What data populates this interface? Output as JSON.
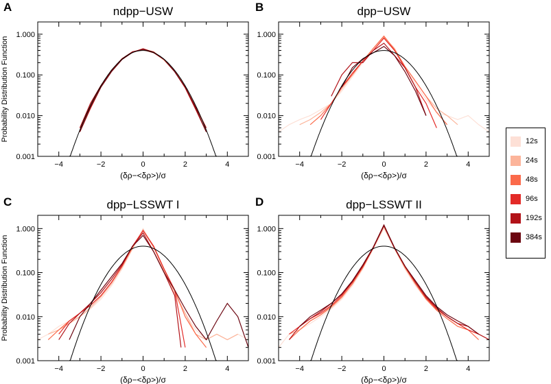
{
  "figure": {
    "y_axis_label": "Probability Distribution Function",
    "x_axis_label": "(δρ−<δρ>)/σ"
  },
  "legend": {
    "items": [
      {
        "label": "12s",
        "color": "#fde0d6"
      },
      {
        "label": "24s",
        "color": "#fcb49a"
      },
      {
        "label": "48s",
        "color": "#fb6a4a"
      },
      {
        "label": "96s",
        "color": "#e32a27"
      },
      {
        "label": "192s",
        "color": "#b21218"
      },
      {
        "label": "384s",
        "color": "#6b0510"
      }
    ]
  },
  "chart_data": [
    {
      "panel_letter": "A",
      "type": "line",
      "title": "ndpp−USW",
      "xlabel": "(δρ−<δρ>)/σ",
      "ylabel": "Probability Distribution Function",
      "xlim": [
        -5,
        5
      ],
      "ylim": [
        0.001,
        2
      ],
      "yscale": "log",
      "x_ticks": [
        -4,
        -2,
        0,
        2,
        4
      ],
      "x_tick_labels": [
        "−4",
        "−2",
        "0",
        "2",
        "4"
      ],
      "y_ticks": [
        0.001,
        0.01,
        0.1,
        1
      ],
      "y_tick_labels": [
        "0.001",
        "0.010",
        "0.100",
        "1.000"
      ],
      "reference_curve": "Gaussian N(0,1), peak 0.399",
      "series": [
        {
          "name": "12s",
          "x": [
            -3.0,
            -2.5,
            -2.0,
            -1.5,
            -1.0,
            -0.5,
            0,
            0.5,
            1.0,
            1.5,
            2.0,
            2.5,
            3.0
          ],
          "y": [
            0.004,
            0.016,
            0.05,
            0.12,
            0.24,
            0.36,
            0.42,
            0.36,
            0.24,
            0.13,
            0.05,
            0.016,
            0.005
          ]
        },
        {
          "name": "24s",
          "x": [
            -3.0,
            -2.5,
            -2.0,
            -1.5,
            -1.0,
            -0.5,
            0,
            0.5,
            1.0,
            1.5,
            2.0,
            2.5,
            3.0
          ],
          "y": [
            0.005,
            0.018,
            0.055,
            0.13,
            0.25,
            0.37,
            0.41,
            0.35,
            0.23,
            0.12,
            0.052,
            0.017,
            0.005
          ]
        },
        {
          "name": "48s",
          "x": [
            -3.0,
            -2.5,
            -2.0,
            -1.5,
            -1.0,
            -0.5,
            0,
            0.5,
            1.0,
            1.5,
            2.0,
            2.5,
            3.0
          ],
          "y": [
            0.004,
            0.017,
            0.052,
            0.125,
            0.245,
            0.365,
            0.43,
            0.37,
            0.235,
            0.125,
            0.05,
            0.015,
            0.004
          ]
        },
        {
          "name": "96s",
          "x": [
            -3.0,
            -2.5,
            -2.0,
            -1.5,
            -1.0,
            -0.5,
            0,
            0.5,
            1.0,
            1.5,
            2.0,
            2.5,
            3.0
          ],
          "y": [
            0.004,
            0.015,
            0.05,
            0.12,
            0.24,
            0.36,
            0.44,
            0.36,
            0.24,
            0.12,
            0.048,
            0.014,
            0.004
          ]
        },
        {
          "name": "192s",
          "x": [
            -3.0,
            -2.5,
            -2.0,
            -1.5,
            -1.0,
            -0.5,
            0,
            0.5,
            1.0,
            1.5,
            2.0,
            2.5,
            3.0
          ],
          "y": [
            0.005,
            0.02,
            0.055,
            0.13,
            0.25,
            0.37,
            0.42,
            0.35,
            0.24,
            0.12,
            0.05,
            0.016,
            0.005
          ]
        },
        {
          "name": "384s",
          "x": [
            -3.0,
            -2.5,
            -2.0,
            -1.5,
            -1.0,
            -0.5,
            0,
            0.5,
            1.0,
            1.5,
            2.0,
            2.5,
            3.0
          ],
          "y": [
            0.004,
            0.016,
            0.05,
            0.12,
            0.24,
            0.36,
            0.43,
            0.36,
            0.24,
            0.12,
            0.05,
            0.015,
            0.004
          ]
        }
      ]
    },
    {
      "panel_letter": "B",
      "type": "line",
      "title": "dpp−USW",
      "xlabel": "(δρ−<δρ>)/σ",
      "ylabel": "",
      "xlim": [
        -5,
        5
      ],
      "ylim": [
        0.001,
        2
      ],
      "yscale": "log",
      "x_ticks": [
        -4,
        -2,
        0,
        2,
        4
      ],
      "x_tick_labels": [
        "−4",
        "−2",
        "0",
        "2",
        "4"
      ],
      "y_ticks": [
        0.001,
        0.01,
        0.1,
        1
      ],
      "y_tick_labels": [
        "0.001",
        "0.010",
        "0.100",
        "1.000"
      ],
      "reference_curve": "Gaussian N(0,1), peak 0.399",
      "series": [
        {
          "name": "12s",
          "x": [
            -5.0,
            -4.5,
            -4.0,
            -3.5,
            -3.0,
            -2.5,
            -2.0,
            -1.5,
            -1.0,
            -0.5,
            0,
            0.5,
            1.0,
            1.5,
            2.0,
            2.5,
            3.0,
            3.5,
            4.0,
            4.5,
            5.0
          ],
          "y": [
            0.004,
            0.006,
            0.008,
            0.01,
            0.014,
            0.02,
            0.04,
            0.09,
            0.2,
            0.4,
            0.8,
            0.4,
            0.15,
            0.06,
            0.025,
            0.012,
            0.01,
            0.008,
            0.01,
            0.006,
            0.004
          ]
        },
        {
          "name": "24s",
          "x": [
            -4.0,
            -3.5,
            -3.0,
            -2.5,
            -2.0,
            -1.5,
            -1.0,
            -0.5,
            0,
            0.5,
            1.0,
            1.5,
            2.0,
            2.5,
            3.0,
            3.5
          ],
          "y": [
            0.006,
            0.008,
            0.012,
            0.02,
            0.045,
            0.1,
            0.22,
            0.45,
            0.85,
            0.45,
            0.16,
            0.07,
            0.03,
            0.015,
            0.01,
            0.006
          ]
        },
        {
          "name": "48s",
          "x": [
            -3.5,
            -3.0,
            -2.5,
            -2.0,
            -1.5,
            -1.0,
            -0.5,
            0,
            0.5,
            1.0,
            1.5,
            2.0,
            2.5,
            3.0
          ],
          "y": [
            0.006,
            0.01,
            0.02,
            0.05,
            0.1,
            0.22,
            0.45,
            0.9,
            0.42,
            0.16,
            0.07,
            0.03,
            0.012,
            0.006
          ]
        },
        {
          "name": "96s",
          "x": [
            -3.0,
            -2.5,
            -2.0,
            -1.5,
            -1.0,
            -0.5,
            0,
            0.5,
            1.0,
            1.5,
            2.0,
            2.5
          ],
          "y": [
            0.008,
            0.02,
            0.05,
            0.11,
            0.22,
            0.4,
            0.8,
            0.4,
            0.15,
            0.05,
            0.02,
            0.005
          ]
        },
        {
          "name": "192s",
          "x": [
            -2.5,
            -2.0,
            -1.5,
            -1.0,
            -0.5,
            0,
            0.5,
            1.0,
            1.5,
            2.0
          ],
          "y": [
            0.03,
            0.1,
            0.2,
            0.2,
            0.4,
            0.6,
            0.3,
            0.15,
            0.05,
            0.01
          ]
        },
        {
          "name": "384s",
          "x": [
            -2.0,
            -1.5,
            -1.0,
            -0.5,
            0,
            0.5,
            1.0,
            1.5,
            2.0
          ],
          "y": [
            0.05,
            0.15,
            0.25,
            0.35,
            0.5,
            0.3,
            0.12,
            0.04,
            0.01
          ]
        }
      ]
    },
    {
      "panel_letter": "C",
      "type": "line",
      "title": "dpp−LSSWT I",
      "xlabel": "(δρ−<δρ>)/σ",
      "ylabel": "Probability Distribution Function",
      "xlim": [
        -5,
        5
      ],
      "ylim": [
        0.001,
        2
      ],
      "yscale": "log",
      "x_ticks": [
        -4,
        -2,
        0,
        2,
        4
      ],
      "x_tick_labels": [
        "−4",
        "−2",
        "0",
        "2",
        "4"
      ],
      "y_ticks": [
        0.001,
        0.01,
        0.1,
        1
      ],
      "y_tick_labels": [
        "0.001",
        "0.010",
        "0.100",
        "1.000"
      ],
      "reference_curve": "Gaussian N(0,1), peak 0.399",
      "series": [
        {
          "name": "12s",
          "x": [
            -5.0,
            -4.5,
            -4.0,
            -3.5,
            -3.0,
            -2.5,
            -2.0,
            -1.5,
            -1.0,
            -0.5,
            0,
            0.5,
            1.0,
            1.5,
            2.0,
            2.5,
            3.0,
            3.5,
            4.0,
            4.5,
            5.0
          ],
          "y": [
            0.003,
            0.004,
            0.006,
            0.008,
            0.01,
            0.015,
            0.025,
            0.05,
            0.12,
            0.35,
            1.0,
            0.4,
            0.1,
            0.03,
            0.012,
            0.005,
            0.003,
            0.004,
            0.003,
            0.004,
            0.003
          ]
        },
        {
          "name": "24s",
          "x": [
            -4.5,
            -4.0,
            -3.5,
            -3.0,
            -2.5,
            -2.0,
            -1.5,
            -1.0,
            -0.5,
            0,
            0.5,
            1.0,
            1.5,
            2.0,
            2.5,
            3.0,
            3.5,
            4.0,
            4.5
          ],
          "y": [
            0.004,
            0.005,
            0.007,
            0.01,
            0.016,
            0.028,
            0.055,
            0.13,
            0.35,
            0.95,
            0.38,
            0.11,
            0.035,
            0.012,
            0.004,
            0.003,
            0.004,
            0.003,
            0.004
          ]
        },
        {
          "name": "48s",
          "x": [
            -4.5,
            -4.0,
            -3.5,
            -3.0,
            -2.5,
            -2.0,
            -1.5,
            -1.0,
            -0.5,
            0,
            0.5,
            1.0,
            1.5,
            2.0,
            2.5,
            3.0
          ],
          "y": [
            0.003,
            0.005,
            0.008,
            0.012,
            0.018,
            0.03,
            0.06,
            0.14,
            0.38,
            0.9,
            0.38,
            0.12,
            0.04,
            0.01,
            0.004,
            0.002
          ]
        },
        {
          "name": "96s",
          "x": [
            -4.0,
            -3.5,
            -3.0,
            -2.5,
            -2.0,
            -1.5,
            -1.0,
            -0.5,
            0,
            0.5,
            1.0,
            1.5,
            2.0
          ],
          "y": [
            0.004,
            0.008,
            0.012,
            0.018,
            0.03,
            0.06,
            0.14,
            0.4,
            0.9,
            0.4,
            0.12,
            0.04,
            0.002
          ]
        },
        {
          "name": "192s",
          "x": [
            -4.0,
            -3.5,
            -3.0,
            -2.5,
            -2.0,
            -1.5,
            -1.0,
            -0.5,
            0,
            0.5,
            1.0,
            1.5,
            1.8
          ],
          "y": [
            0.003,
            0.007,
            0.012,
            0.02,
            0.035,
            0.07,
            0.15,
            0.4,
            0.8,
            0.3,
            0.1,
            0.03,
            0.002
          ]
        },
        {
          "name": "384s",
          "x": [
            -3.5,
            -3.0,
            -2.5,
            -2.0,
            -1.5,
            -1.0,
            -0.5,
            0,
            0.5,
            1.0,
            1.5,
            2.0,
            2.5,
            3.0,
            3.5,
            4.0,
            4.5,
            5.0
          ],
          "y": [
            0.003,
            0.01,
            0.02,
            0.04,
            0.08,
            0.16,
            0.4,
            0.7,
            0.3,
            0.1,
            0.04,
            0.015,
            0.006,
            0.003,
            0.008,
            0.02,
            0.01,
            0.002
          ]
        }
      ]
    },
    {
      "panel_letter": "D",
      "type": "line",
      "title": "dpp−LSSWT II",
      "xlabel": "(δρ−<δρ>)/σ",
      "ylabel": "",
      "xlim": [
        -5,
        5
      ],
      "ylim": [
        0.001,
        2
      ],
      "yscale": "log",
      "x_ticks": [
        -4,
        -2,
        0,
        2,
        4
      ],
      "x_tick_labels": [
        "−4",
        "−2",
        "0",
        "2",
        "4"
      ],
      "y_ticks": [
        0.001,
        0.01,
        0.1,
        1
      ],
      "y_tick_labels": [
        "0.001",
        "0.010",
        "0.100",
        "1.000"
      ],
      "reference_curve": "Gaussian N(0,1), peak 0.399",
      "series": [
        {
          "name": "12s",
          "x": [
            -5.0,
            -4.5,
            -4.0,
            -3.5,
            -3.0,
            -2.5,
            -2.0,
            -1.5,
            -1.0,
            -0.5,
            0,
            0.5,
            1.0,
            1.5,
            2.0,
            2.5,
            3.0,
            3.5,
            4.0,
            4.5,
            5.0
          ],
          "y": [
            0.002,
            0.004,
            0.005,
            0.007,
            0.01,
            0.015,
            0.025,
            0.05,
            0.12,
            0.35,
            1.0,
            0.35,
            0.12,
            0.05,
            0.025,
            0.014,
            0.01,
            0.006,
            0.005,
            0.004,
            0.003
          ]
        },
        {
          "name": "24s",
          "x": [
            -4.5,
            -4.0,
            -3.5,
            -3.0,
            -2.5,
            -2.0,
            -1.5,
            -1.0,
            -0.5,
            0,
            0.5,
            1.0,
            1.5,
            2.0,
            2.5,
            3.0,
            3.5,
            4.0,
            4.5,
            5.0
          ],
          "y": [
            0.004,
            0.005,
            0.008,
            0.011,
            0.016,
            0.027,
            0.055,
            0.13,
            0.36,
            1.1,
            0.35,
            0.13,
            0.055,
            0.026,
            0.015,
            0.01,
            0.007,
            0.005,
            0.004,
            0.003
          ]
        },
        {
          "name": "48s",
          "x": [
            -4.5,
            -4.0,
            -3.5,
            -3.0,
            -2.5,
            -2.0,
            -1.5,
            -1.0,
            -0.5,
            0,
            0.5,
            1.0,
            1.5,
            2.0,
            2.5,
            3.0,
            3.5,
            4.0,
            4.5
          ],
          "y": [
            0.003,
            0.005,
            0.008,
            0.011,
            0.017,
            0.028,
            0.055,
            0.13,
            0.37,
            1.15,
            0.36,
            0.13,
            0.055,
            0.025,
            0.014,
            0.009,
            0.006,
            0.005,
            0.003
          ]
        },
        {
          "name": "96s",
          "x": [
            -4.5,
            -4.0,
            -3.5,
            -3.0,
            -2.5,
            -2.0,
            -1.5,
            -1.0,
            -0.5,
            0,
            0.5,
            1.0,
            1.5,
            2.0,
            2.5,
            3.0,
            3.5,
            4.0,
            4.5
          ],
          "y": [
            0.004,
            0.006,
            0.009,
            0.012,
            0.018,
            0.03,
            0.06,
            0.14,
            0.38,
            1.2,
            0.37,
            0.14,
            0.06,
            0.027,
            0.015,
            0.01,
            0.007,
            0.005,
            0.004
          ]
        },
        {
          "name": "192s",
          "x": [
            -4.5,
            -4.0,
            -3.5,
            -3.0,
            -2.5,
            -2.0,
            -1.5,
            -1.0,
            -0.5,
            0,
            0.5,
            1.0,
            1.5,
            2.0,
            2.5,
            3.0,
            3.5,
            4.0,
            4.5,
            5.0
          ],
          "y": [
            0.003,
            0.006,
            0.009,
            0.013,
            0.02,
            0.032,
            0.062,
            0.14,
            0.37,
            1.15,
            0.36,
            0.14,
            0.06,
            0.028,
            0.016,
            0.01,
            0.007,
            0.006,
            0.004,
            0.003
          ]
        },
        {
          "name": "384s",
          "x": [
            -4.0,
            -3.5,
            -3.0,
            -2.5,
            -2.0,
            -1.5,
            -1.0,
            -0.5,
            0,
            0.5,
            1.0,
            1.5,
            2.0,
            2.5,
            3.0,
            3.5,
            4.0,
            4.5
          ],
          "y": [
            0.006,
            0.01,
            0.014,
            0.02,
            0.033,
            0.065,
            0.15,
            0.38,
            1.2,
            0.37,
            0.14,
            0.065,
            0.03,
            0.017,
            0.011,
            0.008,
            0.006,
            0.004
          ]
        }
      ]
    }
  ]
}
